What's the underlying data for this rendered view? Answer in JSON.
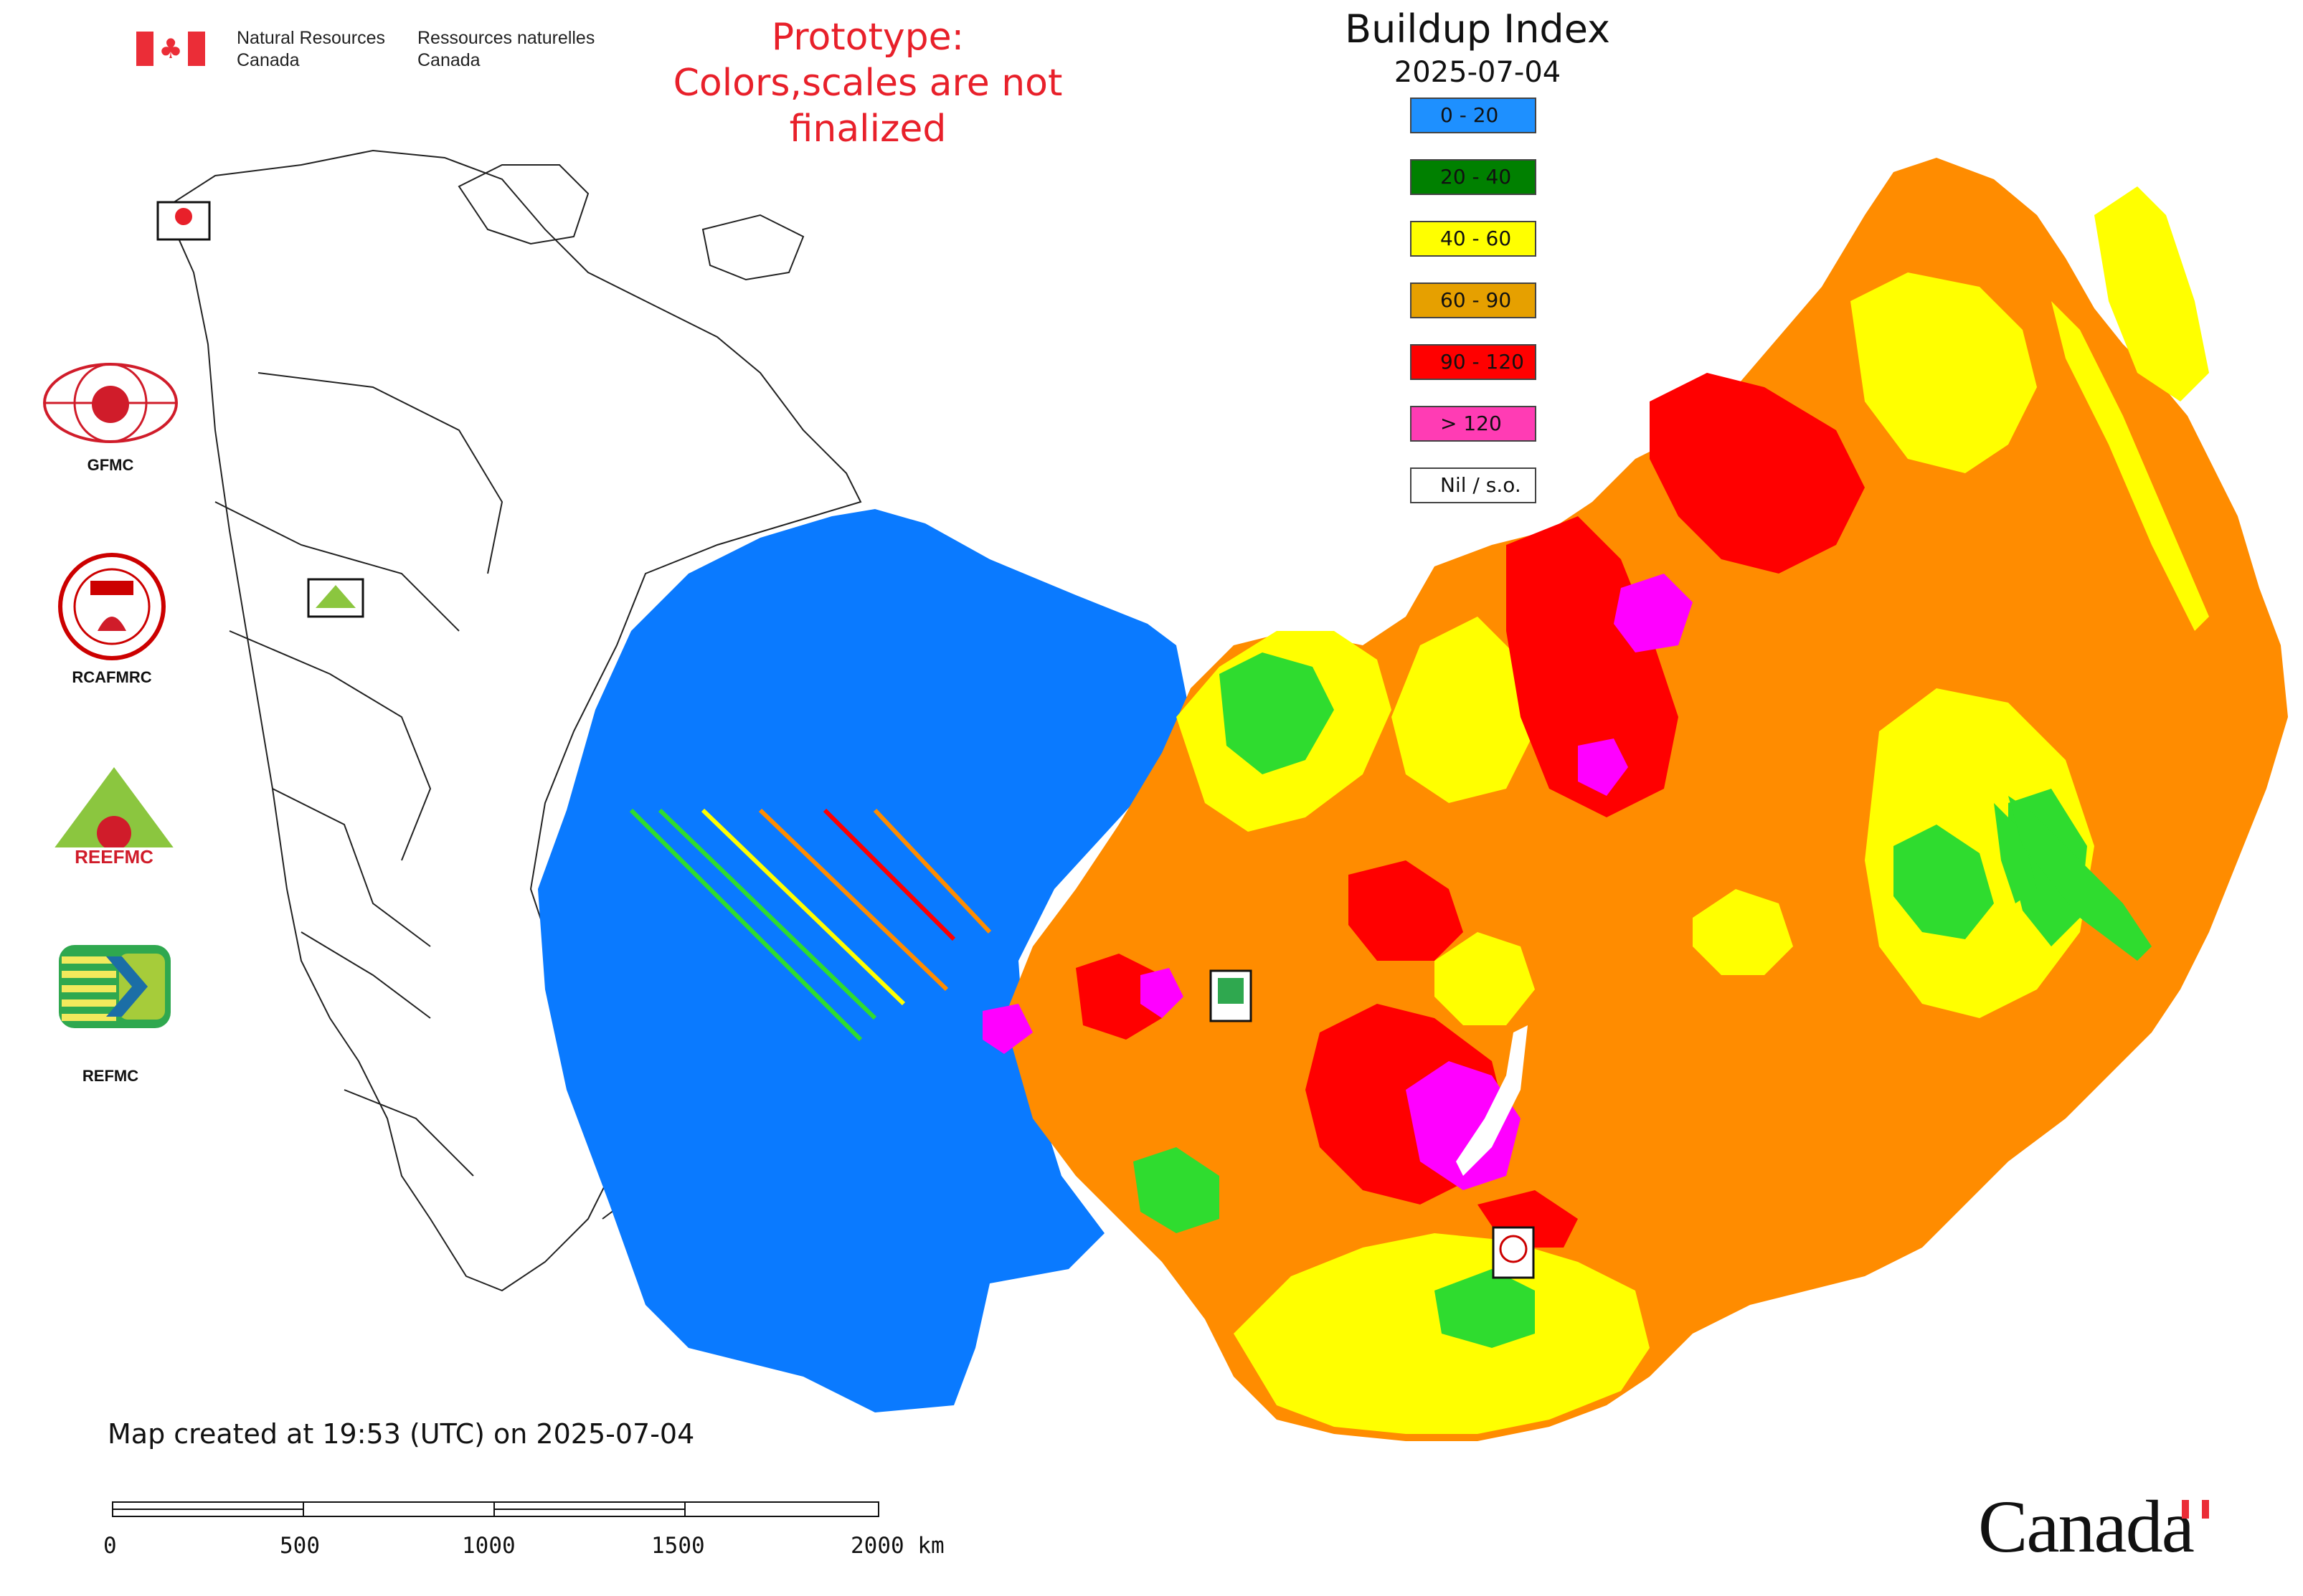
{
  "header": {
    "gov_name_en_1": "Natural Resources",
    "gov_name_en_2": "Canada",
    "gov_name_fr_1": "Ressources naturelles",
    "gov_name_fr_2": "Canada",
    "prototype_line1": "Prototype:",
    "prototype_line2": "Colors,scales are not finalized"
  },
  "legend": {
    "title": "Buildup Index",
    "date": "2025-07-04",
    "items": [
      {
        "label": "0 - 20",
        "color": "#1e90ff"
      },
      {
        "label": "20 - 40",
        "color": "#008000"
      },
      {
        "label": "40 - 60",
        "color": "#ffff00"
      },
      {
        "label": "60 - 90",
        "color": "#e6a000"
      },
      {
        "label": "90 - 120",
        "color": "#ff0000"
      },
      {
        "label": "> 120",
        "color": "#ff3cb4"
      },
      {
        "label": "Nil / s.o.",
        "color": "#ffffff"
      }
    ]
  },
  "organizations": [
    {
      "label": "GFMC",
      "icon": "gfmc-logo-icon"
    },
    {
      "label": "RCAFMRC",
      "icon": "rcafmrc-logo-icon"
    },
    {
      "label": "REEFMC",
      "icon": "reefmc-logo-icon"
    },
    {
      "label": "REFMC",
      "icon": "refmc-logo-icon"
    }
  ],
  "map_markers": {
    "gfmc": "GFMC",
    "reefmc": "REEFMC",
    "refmc": "REFMC",
    "rcafmrc": "RCAFMRC"
  },
  "footer": {
    "created": "Map created at 19:53 (UTC) on 2025-07-04",
    "scale_labels": [
      "0",
      "500",
      "1000",
      "1500",
      "2000 km"
    ],
    "wordmark": "Canada"
  },
  "colors": {
    "map_blue": "#0a7aff",
    "map_green": "#2fdc2f",
    "map_yellow": "#ffff00",
    "map_orange": "#ff8c00",
    "map_red": "#ff0000",
    "map_magenta": "#ff00ff",
    "flag_red": "#eb2d37"
  }
}
